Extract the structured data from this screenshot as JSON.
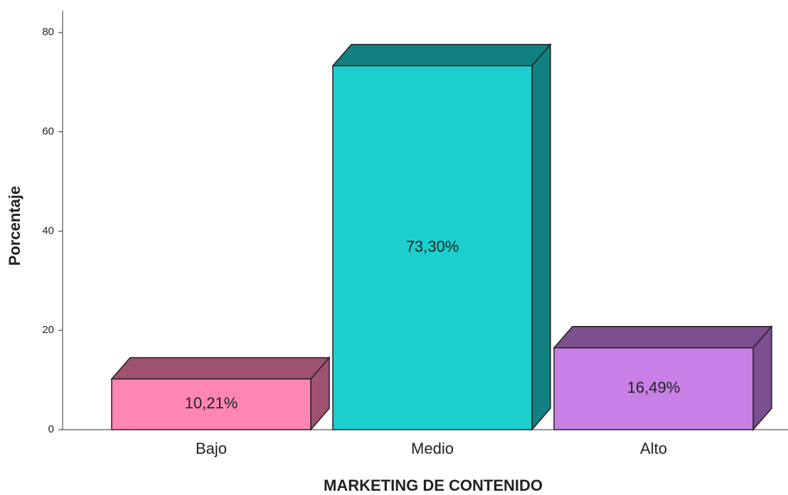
{
  "chart_data": {
    "type": "bar3d",
    "x_label": "MARKETING DE CONTENIDO",
    "y_label": "Porcentaje",
    "categories": [
      "Bajo",
      "Medio",
      "Alto"
    ],
    "values": [
      10.21,
      73.3,
      16.49
    ],
    "value_labels": [
      "10,21%",
      "73,30%",
      "16,49%"
    ],
    "colors": [
      "#ff85b5",
      "#1ccfcf",
      "#c880e6"
    ],
    "ylim": [
      0,
      84.4
    ],
    "yticks": [
      0,
      20,
      40,
      60,
      80
    ],
    "grid": false
  }
}
